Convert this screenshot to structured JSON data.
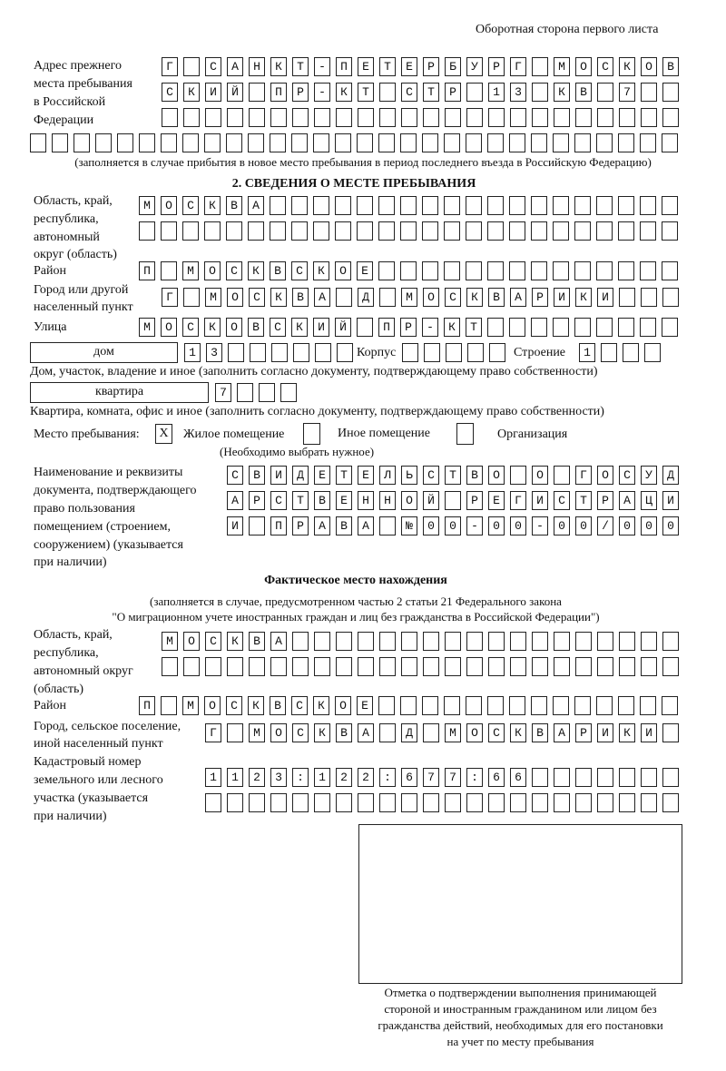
{
  "header": "Оборотная сторона первого листа",
  "prev_address": {
    "label": [
      "Адрес прежнего",
      "места пребывания",
      "в Российской",
      "Федерации"
    ],
    "rows": [
      "Г САНКТ-ПЕТЕРБУРГ МОСКОВ",
      "СКИЙ ПР-КТ СТР 13 КВ 7  ",
      "                        ",
      "                              "
    ],
    "note": "(заполняется в случае прибытия в новое место пребывания в период последнего въезда в Российскую Федерацию)"
  },
  "section2": {
    "title": "2. СВЕДЕНИЯ О МЕСТЕ ПРЕБЫВАНИЯ",
    "region_label": [
      "Область, край,",
      "республика,",
      "автономный",
      "округ (область)"
    ],
    "region_rows": [
      "МОСКВА                   ",
      "                         "
    ],
    "district_label": "Район",
    "district_row": "П МОСКВСКОЕ              ",
    "city_label": [
      "Город или другой",
      "населенный пункт"
    ],
    "city_row": "Г МОСКВА Д МОСКВАРИКИ   ",
    "street_label": "Улица",
    "street_row": "МОСКОВСКИЙ ПР-КТ         ",
    "house_type": "дом",
    "house_row": "13      ",
    "korpus_label": "Корпус",
    "korpus_row": "     ",
    "building_label": "Строение",
    "building_row": "1   ",
    "house_note": "Дом, участок, владение и иное (заполнить согласно документу, подтверждающему право собственности)",
    "flat_type": "квартира",
    "flat_row": "7   ",
    "flat_note": "Квартира, комната, офис и иное (заполнить согласно документу, подтверждающему право собственности)",
    "stay_label": "Место пребывания:",
    "stay_options": [
      {
        "mark": "X",
        "label": "Жилое помещение",
        "checked": true
      },
      {
        "mark": "",
        "label": "Иное помещение",
        "checked": false
      },
      {
        "mark": "",
        "label": "Организация",
        "checked": false
      }
    ],
    "stay_note": "(Необходимо выбрать нужное)",
    "doc_label": [
      "Наименование и реквизиты",
      "документа, подтверждающего",
      "право пользования",
      "помещением (строением,",
      "сооружением) (указывается",
      "при наличии)"
    ],
    "doc_rows": [
      "СВИДЕТЕЛЬСТВО О ГОСУД",
      "АРСТВЕННОЙ РЕГИСТРАЦИ",
      "И ПРАВА №00-00-00/000"
    ]
  },
  "actual": {
    "title": "Фактическое место нахождения",
    "note": [
      "(заполняется в случае, предусмотренном частью 2 статьи 21 Федерального закона",
      "\"О миграционном учете иностранных граждан и лиц без гражданства в Российской Федерации\")"
    ],
    "region_label": [
      "Область, край,",
      "республика,",
      "автономный округ",
      "(область)"
    ],
    "region_rows": [
      "МОСКВА                  ",
      "                        "
    ],
    "district_label": "Район",
    "district_row": "П МОСКВСКОЕ              ",
    "city_label": [
      "Город, сельское поселение,",
      "иной населенный пункт"
    ],
    "city_row": "Г МОСКВА Д МОСКВАРИКИ ",
    "cadastre_label": [
      "Кадастровый номер",
      "земельного или лесного",
      "участка (указывается",
      "при наличии)"
    ],
    "cadastre_rows": [
      "1123:122:677:66       ",
      "                      "
    ]
  },
  "stamp_caption": [
    "Отметка о подтверждении выполнения принимающей",
    "стороной и иностранным гражданином или лицом без",
    "гражданства действий, необходимых для его постановки",
    "на учет по месту пребывания"
  ]
}
